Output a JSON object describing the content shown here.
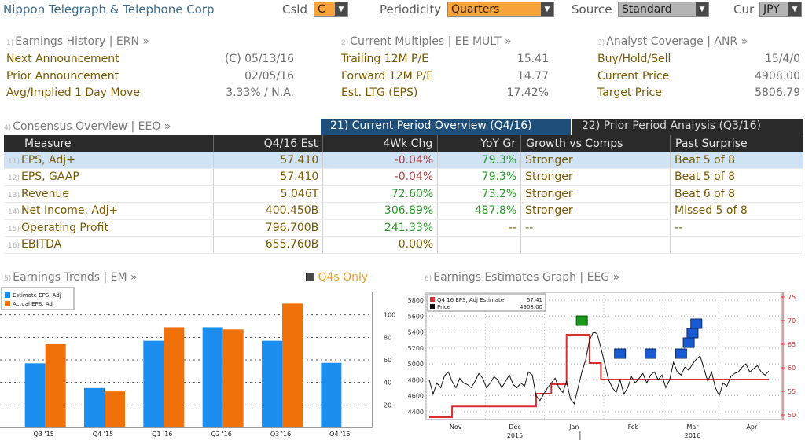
{
  "header": {
    "company": "Nippon Telegraph & Telephone Corp",
    "csld_label": "Csld",
    "csld_value": "C",
    "periodicity_label": "Periodicity",
    "periodicity_value": "Quarters",
    "source_label": "Source",
    "source_value": "Standard",
    "cur_label": "Cur",
    "cur_value": "JPY"
  },
  "earnings_history": {
    "num": "1)",
    "title": "Earnings History | ERN »",
    "rows": [
      {
        "label": "Next Announcement",
        "value": "(C)  05/13/16"
      },
      {
        "label": "Prior Announcement",
        "value": "02/05/16"
      },
      {
        "label": "Avg/Implied 1 Day Move",
        "value": "3.33% / N.A."
      }
    ]
  },
  "current_multiples": {
    "num": "2)",
    "title": "Current Multiples | EE MULT »",
    "rows": [
      {
        "label": "Trailing 12M P/E",
        "value": "15.41"
      },
      {
        "label": "Forward 12M P/E",
        "value": "14.77"
      },
      {
        "label": "Est. LTG (EPS)",
        "value": "17.42%"
      }
    ]
  },
  "analyst_coverage": {
    "num": "3)",
    "title": "Analyst Coverage | ANR »",
    "rows": [
      {
        "label": "Buy/Hold/Sell",
        "value": "15/4/0"
      },
      {
        "label": "Current Price",
        "value": "4908.00"
      },
      {
        "label": "Target Price",
        "value": "5806.79"
      }
    ]
  },
  "consensus": {
    "num": "4)",
    "title": "Consensus Overview | EEO »",
    "tab_current": "21) Current Period Overview (Q4/16)",
    "tab_prior": "22) Prior Period Analysis (Q3/16)",
    "columns": [
      "Measure",
      "Q4/16 Est",
      "4Wk Chg",
      "YoY Gr",
      "Growth vs Comps",
      "Past Surprise"
    ],
    "rows": [
      {
        "num": "11)",
        "measure": "EPS, Adj+",
        "est": "57.410",
        "chg": "-0.04%",
        "chg_class": "neg",
        "yoy": "79.3%",
        "growth": "Stronger",
        "surprise": "Beat 5 of 8"
      },
      {
        "num": "12)",
        "measure": "EPS, GAAP",
        "est": "57.410",
        "chg": "-0.04%",
        "chg_class": "neg",
        "yoy": "79.3%",
        "growth": "Stronger",
        "surprise": "Beat 5 of 8"
      },
      {
        "num": "13)",
        "measure": "Revenue",
        "est": "5.046T",
        "chg": "72.60%",
        "chg_class": "pos",
        "yoy": "73.2%",
        "growth": "Stronger",
        "surprise": "Beat 6 of 8"
      },
      {
        "num": "14)",
        "measure": "Net Income, Adj+",
        "est": "400.450B",
        "chg": "306.89%",
        "chg_class": "pos",
        "yoy": "487.8%",
        "growth": "Stronger",
        "surprise": "Missed 5 of 8"
      },
      {
        "num": "15)",
        "measure": "Operating Profit",
        "est": "796.700B",
        "chg": "241.33%",
        "chg_class": "pos",
        "yoy": "--",
        "growth": "--",
        "surprise": "--"
      },
      {
        "num": "16)",
        "measure": "EBITDA",
        "est": "655.760B",
        "chg": "0.00%",
        "chg_class": "neu",
        "yoy": "",
        "growth": "",
        "surprise": ""
      }
    ]
  },
  "earnings_trends": {
    "num": "5)",
    "title": "Earnings Trends | EM »",
    "toggle_label": "Q4s Only",
    "legend_estimate": "Estimate EPS, Adj",
    "legend_actual": "Actual EPS, Adj"
  },
  "earnings_graph": {
    "num": "6)",
    "title": "Earnings Estimates Graph | EEG »",
    "legend_series1": "Q4 16 EPS, Adj Estimate",
    "legend_series1_value": "57.41",
    "legend_series2": "Price",
    "legend_series2_value": "4908.00"
  },
  "colors": {
    "estimate": "#1c8ef0",
    "actual": "#f0700a",
    "price": "#111111",
    "estimate_line": "#d83030"
  },
  "chart_data": [
    {
      "type": "bar",
      "categories": [
        "Q3 '15",
        "Q4 '15",
        "Q1 '16",
        "Q2 '16",
        "Q3 '16",
        "Q4 '16"
      ],
      "series": [
        {
          "name": "Estimate EPS, Adj",
          "values": [
            57,
            35,
            77,
            89,
            77,
            57.41
          ]
        },
        {
          "name": "Actual EPS, Adj",
          "values": [
            74,
            32,
            89,
            87,
            110,
            null
          ]
        }
      ],
      "ylim": [
        0,
        120
      ],
      "yticks": [
        20,
        40,
        60,
        80,
        100
      ]
    },
    {
      "type": "line",
      "x_ticks": [
        "Nov",
        "Dec",
        "Jan",
        "Feb",
        "Mar",
        "Apr"
      ],
      "x_years": [
        "2015",
        "2016"
      ],
      "left_axis": {
        "ticks": [
          4400,
          4600,
          4800,
          5000,
          5200,
          5400,
          5600,
          5800
        ]
      },
      "right_axis": {
        "ticks": [
          50,
          55,
          60,
          65,
          70,
          75
        ]
      },
      "price": {
        "name": "Price",
        "ylim": [
          4300,
          5900
        ],
        "values": [
          4800,
          4620,
          4760,
          4700,
          4850,
          4900,
          4780,
          4700,
          4820,
          4760,
          4740,
          4700,
          4780,
          4880,
          4820,
          4700,
          4760,
          4840,
          4800,
          4700,
          4780,
          4860,
          4740,
          4700,
          4760,
          4720,
          4900,
          4860,
          4600,
          4540,
          4620,
          4700,
          4760,
          4820,
          4700,
          4640,
          4780,
          4560,
          4500,
          4700,
          4900,
          5050,
          5300,
          5400,
          5380,
          5200,
          5000,
          4800,
          4700,
          4640,
          4800,
          4620,
          4700,
          4840,
          4760,
          4820,
          4880,
          4760,
          4860,
          4900,
          4800,
          4860,
          4700,
          4800,
          5020,
          4900,
          4860,
          4960,
          4920,
          5000,
          5060,
          5100,
          4940,
          4780,
          4900,
          4700,
          4600,
          4760,
          4720,
          4840,
          4880,
          4900,
          4960,
          5000,
          4900,
          4940,
          4980,
          4900,
          4860,
          4908
        ]
      },
      "estimate": {
        "name": "Q4 16 EPS, Adj Estimate",
        "ylim": [
          49,
          76
        ],
        "steps": [
          [
            0,
            49.5
          ],
          [
            6,
            49.5
          ],
          [
            6,
            51.8
          ],
          [
            28,
            51.8
          ],
          [
            28,
            54.5
          ],
          [
            32,
            54.5
          ],
          [
            32,
            56.5
          ],
          [
            36,
            56.5
          ],
          [
            36,
            67
          ],
          [
            42,
            67
          ],
          [
            42,
            61
          ],
          [
            45,
            61
          ],
          [
            45,
            57.5
          ],
          [
            89,
            57.5
          ]
        ]
      },
      "markers_green": [
        40
      ],
      "markers_blue": [
        50,
        58,
        66,
        68,
        69,
        70
      ]
    }
  ]
}
